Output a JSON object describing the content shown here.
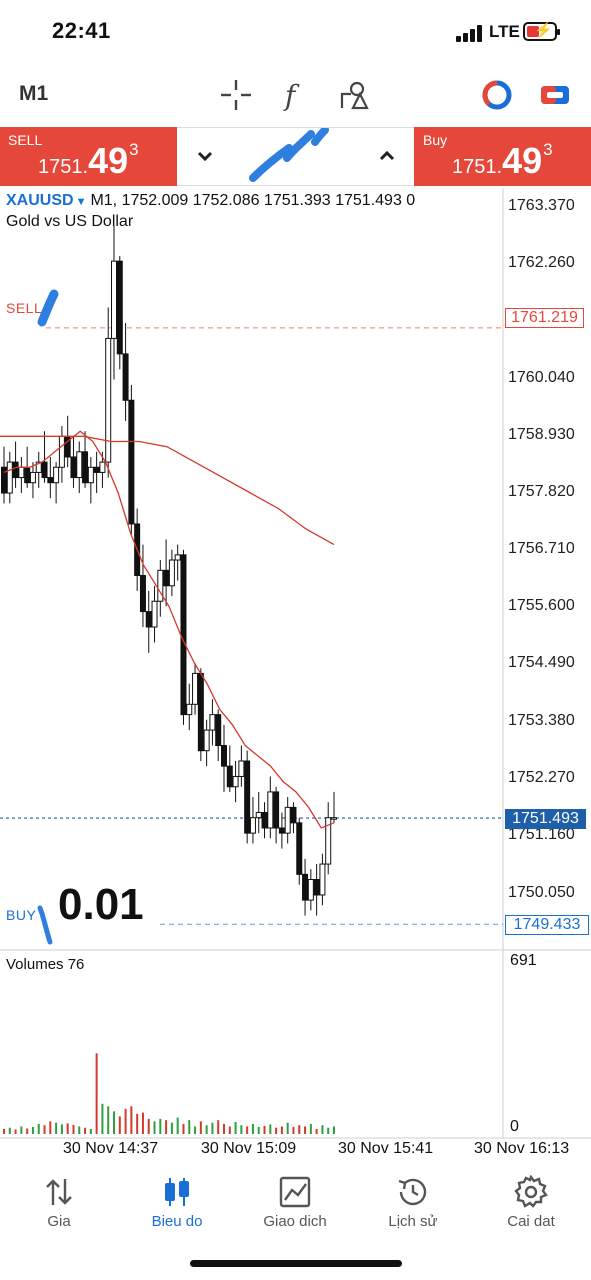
{
  "status_bar": {
    "time": "22:41",
    "network": "LTE"
  },
  "toolbar": {
    "timeframe": "M1"
  },
  "trade": {
    "sell_label": "SELL",
    "buy_label": "Buy",
    "sell_price_small": "1751.",
    "sell_price_big": "49",
    "sell_price_sup": "3",
    "buy_price_small": "1751.",
    "buy_price_big": "49",
    "buy_price_sup": "3"
  },
  "chart": {
    "symbol": "XAUUSD",
    "ohlc_line": "M1, 1752.009 1752.086 1751.393 1751.493 0",
    "description": "Gold vs US Dollar",
    "price_axis": [
      "1763.370",
      "1762.260",
      "1760.040",
      "1758.930",
      "1757.820",
      "1756.710",
      "1755.600",
      "1754.490",
      "1753.380",
      "1752.270",
      "1751.160",
      "1750.050"
    ],
    "sell_line_label": "SELL",
    "sell_line_price": "1761.219",
    "bid_price": "1751.493",
    "buy_line_label": "BUY",
    "buy_line_price": "1749.433",
    "lot_size": "0.01",
    "volumes_label": "Volumes 76",
    "volume_max": "691",
    "volume_min": "0",
    "time_axis": [
      "30 Nov 14:37",
      "30 Nov 15:09",
      "30 Nov 15:41",
      "30 Nov 16:13"
    ],
    "colors": {
      "sell": "#e5483b",
      "buy": "#1a6fd6",
      "bid": "#1d5fa8",
      "ma": "#d23a2a",
      "vol_up": "#2e9e3f",
      "vol_down": "#d23a2a"
    }
  },
  "chart_data": {
    "type": "candlestick",
    "symbol": "XAUUSD",
    "timeframe": "M1",
    "candles": [
      [
        1758.3,
        1758.7,
        1757.6,
        1757.8
      ],
      [
        1757.8,
        1758.6,
        1757.6,
        1758.4
      ],
      [
        1758.4,
        1758.8,
        1757.9,
        1758.1
      ],
      [
        1758.1,
        1758.5,
        1757.8,
        1758.3
      ],
      [
        1758.3,
        1758.7,
        1757.9,
        1758.0
      ],
      [
        1758.0,
        1758.4,
        1757.7,
        1758.2
      ],
      [
        1758.2,
        1758.6,
        1757.9,
        1758.4
      ],
      [
        1758.4,
        1759.0,
        1758.0,
        1758.1
      ],
      [
        1758.1,
        1758.5,
        1757.7,
        1758.0
      ],
      [
        1758.0,
        1758.4,
        1757.6,
        1758.3
      ],
      [
        1758.3,
        1759.1,
        1758.0,
        1758.9
      ],
      [
        1758.9,
        1759.3,
        1758.3,
        1758.5
      ],
      [
        1758.5,
        1758.9,
        1757.9,
        1758.1
      ],
      [
        1758.1,
        1758.8,
        1757.8,
        1758.6
      ],
      [
        1758.6,
        1759.0,
        1757.9,
        1758.0
      ],
      [
        1758.0,
        1758.5,
        1757.6,
        1758.3
      ],
      [
        1758.3,
        1758.6,
        1757.8,
        1758.2
      ],
      [
        1758.2,
        1758.6,
        1757.9,
        1758.4
      ],
      [
        1758.4,
        1761.4,
        1758.1,
        1760.8
      ],
      [
        1760.8,
        1763.0,
        1760.0,
        1762.3
      ],
      [
        1762.3,
        1762.4,
        1760.2,
        1760.5
      ],
      [
        1760.5,
        1761.1,
        1759.2,
        1759.6
      ],
      [
        1759.6,
        1759.9,
        1757.0,
        1757.2
      ],
      [
        1757.2,
        1757.5,
        1755.9,
        1756.2
      ],
      [
        1756.2,
        1756.8,
        1755.2,
        1755.5
      ],
      [
        1755.5,
        1755.9,
        1754.7,
        1755.2
      ],
      [
        1755.2,
        1756.0,
        1754.9,
        1755.7
      ],
      [
        1755.7,
        1756.5,
        1755.4,
        1756.3
      ],
      [
        1756.3,
        1756.9,
        1755.6,
        1756.0
      ],
      [
        1756.0,
        1756.7,
        1755.8,
        1756.5
      ],
      [
        1756.5,
        1756.8,
        1756.1,
        1756.6
      ],
      [
        1756.6,
        1756.7,
        1753.3,
        1753.5
      ],
      [
        1753.5,
        1754.1,
        1753.2,
        1753.7
      ],
      [
        1753.7,
        1754.5,
        1753.5,
        1754.3
      ],
      [
        1754.3,
        1754.4,
        1752.6,
        1752.8
      ],
      [
        1752.8,
        1753.4,
        1752.5,
        1753.2
      ],
      [
        1753.2,
        1753.8,
        1752.9,
        1753.5
      ],
      [
        1753.5,
        1753.6,
        1752.6,
        1752.9
      ],
      [
        1752.9,
        1753.3,
        1752.0,
        1752.5
      ],
      [
        1752.5,
        1752.9,
        1752.0,
        1752.1
      ],
      [
        1752.1,
        1752.6,
        1751.8,
        1752.3
      ],
      [
        1752.3,
        1752.9,
        1752.1,
        1752.6
      ],
      [
        1752.6,
        1752.8,
        1751.0,
        1751.2
      ],
      [
        1751.2,
        1751.9,
        1751.0,
        1751.5
      ],
      [
        1751.5,
        1752.0,
        1751.2,
        1751.6
      ],
      [
        1751.6,
        1751.8,
        1751.1,
        1751.3
      ],
      [
        1751.3,
        1752.3,
        1751.1,
        1752.0
      ],
      [
        1752.0,
        1752.1,
        1751.0,
        1751.3
      ],
      [
        1751.3,
        1751.6,
        1750.9,
        1751.2
      ],
      [
        1751.2,
        1751.9,
        1751.0,
        1751.7
      ],
      [
        1751.7,
        1751.8,
        1751.2,
        1751.4
      ],
      [
        1751.4,
        1751.5,
        1750.2,
        1750.4
      ],
      [
        1750.4,
        1750.7,
        1749.6,
        1749.9
      ],
      [
        1749.9,
        1750.5,
        1749.7,
        1750.3
      ],
      [
        1750.3,
        1750.6,
        1749.6,
        1750.0
      ],
      [
        1750.0,
        1750.8,
        1749.8,
        1750.6
      ],
      [
        1750.6,
        1751.8,
        1750.4,
        1751.5
      ],
      [
        1751.5,
        1752.0,
        1751.4,
        1751.5
      ]
    ],
    "ma_fast": [
      1758.2,
      1758.3,
      1758.3,
      1758.4,
      1758.6,
      1758.8,
      1759.0,
      1758.8,
      1758.4,
      1757.8,
      1757.0,
      1756.4,
      1756.0,
      1755.6,
      1755.0,
      1754.5,
      1754.1,
      1753.6,
      1753.3,
      1752.9,
      1752.7,
      1752.5,
      1752.2,
      1752.0,
      1751.7,
      1751.3,
      1751.4
    ],
    "ma_slow": [
      1758.9,
      1758.9,
      1758.9,
      1758.9,
      1758.8,
      1758.8,
      1758.7,
      1758.4,
      1758.1,
      1757.8,
      1757.5,
      1757.1,
      1756.8
    ],
    "volumes": [
      20,
      25,
      18,
      30,
      22,
      28,
      40,
      35,
      50,
      45,
      38,
      42,
      36,
      30,
      25,
      20,
      320,
      120,
      110,
      90,
      70,
      100,
      110,
      80,
      85,
      60,
      50,
      60,
      55,
      45,
      65,
      40,
      55,
      30,
      50,
      35,
      45,
      55,
      40,
      30,
      48,
      35,
      30,
      40,
      28,
      32,
      38,
      25,
      30,
      45,
      28,
      35,
      30,
      40,
      20,
      35,
      25,
      30
    ],
    "volume_range": [
      0,
      691
    ],
    "ylim": [
      1749.0,
      1763.8
    ],
    "x_ticks": [
      "30 Nov 14:37",
      "30 Nov 15:09",
      "30 Nov 15:41",
      "30 Nov 16:13"
    ]
  }
}
